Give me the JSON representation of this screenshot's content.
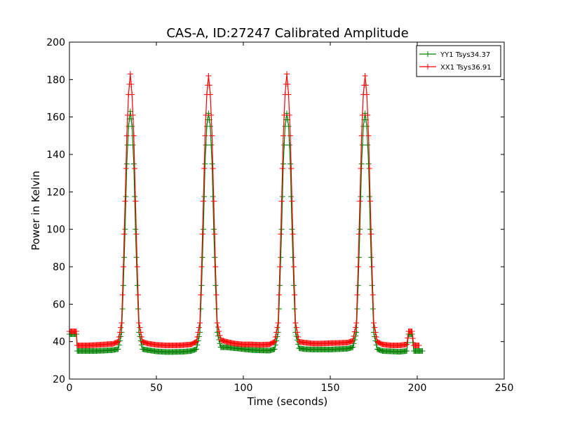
{
  "chart_data": {
    "type": "line",
    "title": "CAS-A, ID:27247 Calibrated Amplitude",
    "xlabel": "Time (seconds)",
    "ylabel": "Power in Kelvin",
    "xlim": [
      0,
      250
    ],
    "ylim": [
      20,
      200
    ],
    "xticks": [
      0,
      50,
      100,
      150,
      200,
      250
    ],
    "yticks": [
      20,
      40,
      60,
      80,
      100,
      120,
      140,
      160,
      180,
      200
    ],
    "grid": false,
    "legend_position": "top-right",
    "marker": "+",
    "series": [
      {
        "name": "YY1 Tsys34.37",
        "color": "#008000",
        "points": [
          [
            0,
            44
          ],
          [
            4,
            44
          ],
          [
            4.5,
            35
          ],
          [
            10,
            35
          ],
          [
            15,
            35
          ],
          [
            20,
            35.2
          ],
          [
            25,
            35.5
          ],
          [
            28,
            36
          ],
          [
            30,
            45
          ],
          [
            31,
            70
          ],
          [
            32,
            100
          ],
          [
            33,
            135
          ],
          [
            34,
            155
          ],
          [
            35,
            163
          ],
          [
            36,
            155
          ],
          [
            37,
            135
          ],
          [
            38,
            100
          ],
          [
            39,
            70
          ],
          [
            40,
            45
          ],
          [
            42,
            36
          ],
          [
            45,
            35.5
          ],
          [
            50,
            34.8
          ],
          [
            55,
            34.5
          ],
          [
            60,
            34.5
          ],
          [
            65,
            34.6
          ],
          [
            70,
            35
          ],
          [
            73,
            36
          ],
          [
            75,
            45
          ],
          [
            76,
            70
          ],
          [
            77,
            100
          ],
          [
            78,
            135
          ],
          [
            79,
            155
          ],
          [
            80,
            162
          ],
          [
            81,
            155
          ],
          [
            82,
            135
          ],
          [
            83,
            100
          ],
          [
            84,
            70
          ],
          [
            85,
            45
          ],
          [
            87,
            37
          ],
          [
            90,
            37
          ],
          [
            95,
            36.5
          ],
          [
            100,
            36
          ],
          [
            105,
            35.5
          ],
          [
            110,
            35.3
          ],
          [
            115,
            35.2
          ],
          [
            118,
            36
          ],
          [
            120,
            45
          ],
          [
            121,
            70
          ],
          [
            122,
            100
          ],
          [
            123,
            135
          ],
          [
            124,
            155
          ],
          [
            125,
            162
          ],
          [
            126,
            155
          ],
          [
            127,
            135
          ],
          [
            128,
            100
          ],
          [
            129,
            70
          ],
          [
            130,
            45
          ],
          [
            132,
            36.5
          ],
          [
            135,
            36
          ],
          [
            140,
            35.8
          ],
          [
            145,
            35.8
          ],
          [
            150,
            35.8
          ],
          [
            155,
            36
          ],
          [
            160,
            36.2
          ],
          [
            163,
            37
          ],
          [
            165,
            45
          ],
          [
            166,
            70
          ],
          [
            167,
            100
          ],
          [
            168,
            135
          ],
          [
            169,
            155
          ],
          [
            170,
            162
          ],
          [
            171,
            155
          ],
          [
            172,
            135
          ],
          [
            173,
            100
          ],
          [
            174,
            70
          ],
          [
            175,
            45
          ],
          [
            177,
            36
          ],
          [
            180,
            35
          ],
          [
            185,
            34.8
          ],
          [
            190,
            34.6
          ],
          [
            194,
            35
          ],
          [
            195,
            44
          ],
          [
            197,
            44
          ],
          [
            198,
            35
          ],
          [
            200,
            35
          ],
          [
            203,
            35
          ]
        ]
      },
      {
        "name": "XX1 Tsys36.91",
        "color": "#ff0000",
        "points": [
          [
            0,
            45.5
          ],
          [
            4,
            45.5
          ],
          [
            4.5,
            38
          ],
          [
            10,
            38
          ],
          [
            15,
            38.2
          ],
          [
            20,
            38.5
          ],
          [
            25,
            38.8
          ],
          [
            28,
            40
          ],
          [
            30,
            50
          ],
          [
            31,
            80
          ],
          [
            32,
            115
          ],
          [
            33,
            150
          ],
          [
            34,
            172
          ],
          [
            35,
            183
          ],
          [
            36,
            172
          ],
          [
            37,
            150
          ],
          [
            38,
            115
          ],
          [
            39,
            80
          ],
          [
            40,
            50
          ],
          [
            42,
            40
          ],
          [
            45,
            39
          ],
          [
            50,
            38.3
          ],
          [
            55,
            38
          ],
          [
            60,
            38
          ],
          [
            65,
            38.1
          ],
          [
            70,
            38.5
          ],
          [
            73,
            40
          ],
          [
            75,
            50
          ],
          [
            76,
            80
          ],
          [
            77,
            115
          ],
          [
            78,
            150
          ],
          [
            79,
            172
          ],
          [
            80,
            182
          ],
          [
            81,
            172
          ],
          [
            82,
            150
          ],
          [
            83,
            115
          ],
          [
            84,
            80
          ],
          [
            85,
            50
          ],
          [
            87,
            41
          ],
          [
            90,
            40
          ],
          [
            95,
            39
          ],
          [
            100,
            38.5
          ],
          [
            105,
            38.5
          ],
          [
            110,
            38.3
          ],
          [
            115,
            38.5
          ],
          [
            118,
            40
          ],
          [
            120,
            50
          ],
          [
            121,
            80
          ],
          [
            122,
            115
          ],
          [
            123,
            150
          ],
          [
            124,
            172
          ],
          [
            125,
            183
          ],
          [
            126,
            172
          ],
          [
            127,
            150
          ],
          [
            128,
            115
          ],
          [
            129,
            80
          ],
          [
            130,
            50
          ],
          [
            132,
            40
          ],
          [
            135,
            39.5
          ],
          [
            140,
            39
          ],
          [
            145,
            39
          ],
          [
            150,
            39.2
          ],
          [
            155,
            39.3
          ],
          [
            160,
            39.5
          ],
          [
            163,
            40.5
          ],
          [
            165,
            50
          ],
          [
            166,
            80
          ],
          [
            167,
            115
          ],
          [
            168,
            150
          ],
          [
            169,
            172
          ],
          [
            170,
            182
          ],
          [
            171,
            172
          ],
          [
            172,
            150
          ],
          [
            173,
            115
          ],
          [
            174,
            80
          ],
          [
            175,
            50
          ],
          [
            177,
            40
          ],
          [
            180,
            38.5
          ],
          [
            185,
            38
          ],
          [
            190,
            38
          ],
          [
            194,
            38.5
          ],
          [
            195,
            45.5
          ],
          [
            197,
            45.5
          ],
          [
            198,
            38
          ],
          [
            200,
            38
          ],
          [
            201,
            38
          ]
        ]
      }
    ]
  }
}
